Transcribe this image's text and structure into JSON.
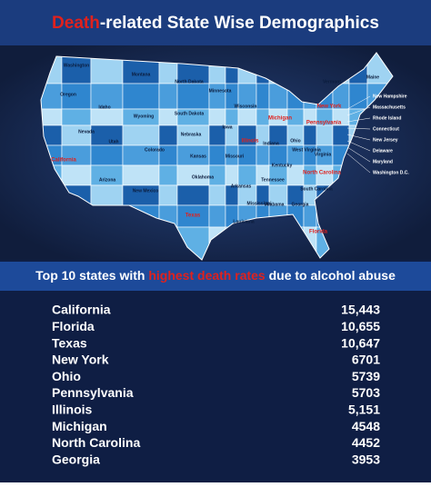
{
  "header": {
    "title_highlight": "Death",
    "title_rest": "-related State Wise Demographics"
  },
  "map": {
    "states": [
      "Washington",
      "Oregon",
      "California",
      "Nevada",
      "Idaho",
      "Montana",
      "Wyoming",
      "Utah",
      "Arizona",
      "Colorado",
      "New Mexico",
      "North Dakota",
      "South Dakota",
      "Nebraska",
      "Kansas",
      "Oklahoma",
      "Texas",
      "Minnesota",
      "Iowa",
      "Missouri",
      "Arkansas",
      "Louisiana",
      "Wisconsin",
      "Illinois",
      "Mississippi",
      "Michigan",
      "Indiana",
      "Kentucky",
      "Tennessee",
      "Alabama",
      "Ohio",
      "Georgia",
      "Florida",
      "South Carolina",
      "North Carolina",
      "Virginia",
      "West Virginia",
      "Pennsylvania",
      "New York",
      "Vermont",
      "Maine"
    ],
    "side_labels": [
      "New Hampshire",
      "Massachusetts",
      "Rhode Island",
      "Connecticut",
      "New Jersey",
      "Delaware",
      "Maryland",
      "Washington D.C."
    ]
  },
  "subtitle": {
    "before": "Top 10 states with ",
    "highlight": "highest death rates",
    "after": " due to alcohol abuse"
  },
  "table": {
    "rows": [
      [
        "California",
        "15,443"
      ],
      [
        "Florida",
        "10,655"
      ],
      [
        "Texas",
        "10,647"
      ],
      [
        "New York",
        "6701"
      ],
      [
        "Ohio",
        "5739"
      ],
      [
        "Pennsylvania",
        "5703"
      ],
      [
        "Illinois",
        "5,151"
      ],
      [
        "Michigan",
        "4548"
      ],
      [
        "North Carolina",
        "4452"
      ],
      [
        "Georgia",
        "3953"
      ]
    ]
  }
}
